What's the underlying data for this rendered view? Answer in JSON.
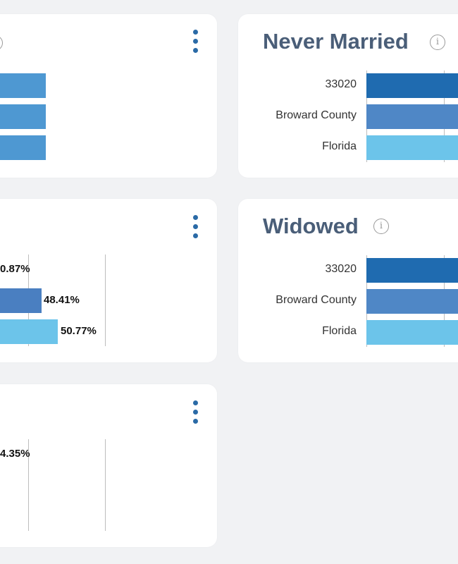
{
  "colors": {
    "background": "#f1f2f4",
    "accent": "#2a6aa6",
    "bar_dark": "#1f6bb0",
    "bar_mid": "#4f87c6",
    "bar_light": "#6cc4ea",
    "bar_plain": "#4e98d2"
  },
  "cards": {
    "top_left": {
      "menu_icon": "kebab-icon",
      "info_icon": "info-icon"
    },
    "middle_left": {
      "labels": [
        "0.87%",
        "48.41%",
        "50.77%"
      ]
    },
    "bottom_left": {
      "labels": [
        "4.35%"
      ]
    },
    "never_married": {
      "title": "Never Married",
      "info_icon": "info-icon",
      "categories": [
        "33020",
        "Broward County",
        "Florida"
      ]
    },
    "widowed": {
      "title": "Widowed",
      "info_icon": "info-icon",
      "categories": [
        "33020",
        "Broward County",
        "Florida"
      ]
    }
  }
}
